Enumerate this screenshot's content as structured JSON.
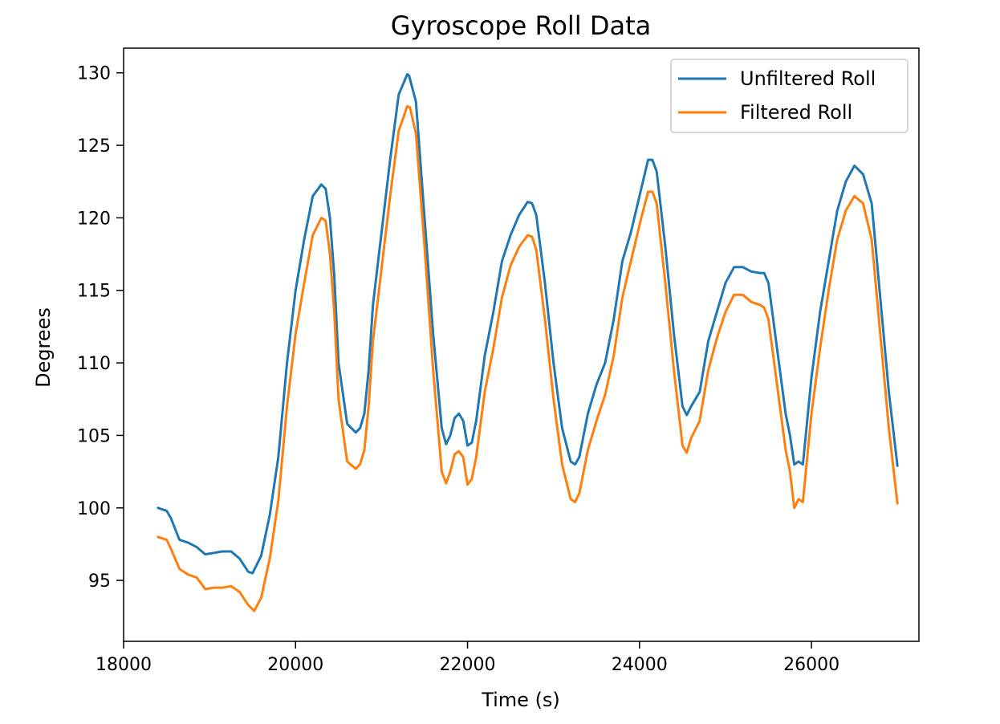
{
  "chart_data": {
    "type": "line",
    "title": "Gyroscope Roll Data",
    "xlabel": "Time (s)",
    "ylabel": "Degrees",
    "xlim": [
      18000,
      27250
    ],
    "ylim": [
      90.8,
      131.7
    ],
    "xticks": [
      18000,
      20000,
      22000,
      24000,
      26000
    ],
    "yticks": [
      95,
      100,
      105,
      110,
      115,
      120,
      125,
      130
    ],
    "grid": false,
    "legend_position": "top-right",
    "series": [
      {
        "name": "Unfiltered Roll",
        "color": "#1f77b4",
        "x": [
          18400,
          18500,
          18550,
          18650,
          18750,
          18850,
          18950,
          19050,
          19150,
          19250,
          19350,
          19450,
          19500,
          19600,
          19700,
          19800,
          19900,
          20000,
          20100,
          20200,
          20300,
          20350,
          20400,
          20450,
          20500,
          20600,
          20700,
          20750,
          20800,
          20850,
          20900,
          21000,
          21100,
          21200,
          21300,
          21320,
          21400,
          21500,
          21600,
          21700,
          21750,
          21800,
          21850,
          21900,
          21950,
          22000,
          22050,
          22100,
          22200,
          22300,
          22400,
          22500,
          22600,
          22700,
          22750,
          22800,
          22900,
          23000,
          23100,
          23200,
          23250,
          23300,
          23400,
          23500,
          23600,
          23700,
          23800,
          23900,
          24000,
          24100,
          24150,
          24200,
          24300,
          24400,
          24500,
          24550,
          24600,
          24700,
          24800,
          24900,
          25000,
          25100,
          25200,
          25300,
          25400,
          25450,
          25500,
          25600,
          25700,
          25750,
          25800,
          25850,
          25900,
          26000,
          26100,
          26200,
          26300,
          26400,
          26500,
          26600,
          26700,
          26800,
          26900,
          27000
        ],
        "y": [
          100.0,
          99.8,
          99.3,
          97.8,
          97.6,
          97.3,
          96.8,
          96.9,
          97.0,
          97.0,
          96.5,
          95.6,
          95.5,
          96.7,
          99.5,
          103.5,
          110.0,
          115.0,
          118.5,
          121.5,
          122.3,
          122.0,
          120.0,
          116.0,
          110.0,
          105.8,
          105.2,
          105.5,
          106.5,
          109.5,
          114.0,
          119.0,
          124.0,
          128.5,
          129.9,
          129.8,
          128.0,
          120.0,
          112.0,
          105.5,
          104.4,
          105.0,
          106.2,
          106.5,
          106.0,
          104.3,
          104.5,
          106.0,
          110.5,
          113.5,
          117.0,
          118.8,
          120.2,
          121.1,
          121.0,
          120.2,
          115.5,
          110.0,
          105.5,
          103.2,
          103.0,
          103.5,
          106.5,
          108.5,
          110.0,
          113.0,
          117.0,
          119.0,
          121.5,
          124.0,
          124.0,
          123.2,
          118.0,
          112.0,
          107.0,
          106.4,
          107.0,
          108.0,
          111.5,
          113.5,
          115.5,
          116.6,
          116.6,
          116.3,
          116.2,
          116.2,
          115.5,
          111.0,
          106.5,
          105.0,
          103.0,
          103.2,
          103.0,
          109.0,
          113.5,
          117.0,
          120.5,
          122.5,
          123.6,
          123.0,
          121.0,
          114.5,
          108.0,
          102.9
        ]
      },
      {
        "name": "Filtered Roll",
        "color": "#ff7f0e",
        "x": [
          18400,
          18500,
          18550,
          18650,
          18750,
          18850,
          18950,
          19050,
          19150,
          19250,
          19350,
          19450,
          19520,
          19600,
          19700,
          19800,
          19900,
          20000,
          20100,
          20200,
          20300,
          20350,
          20400,
          20450,
          20500,
          20600,
          20700,
          20750,
          20800,
          20850,
          20900,
          21000,
          21100,
          21200,
          21300,
          21330,
          21400,
          21500,
          21600,
          21700,
          21750,
          21800,
          21850,
          21900,
          21950,
          22000,
          22050,
          22100,
          22200,
          22300,
          22400,
          22500,
          22600,
          22700,
          22750,
          22800,
          22900,
          23000,
          23100,
          23200,
          23250,
          23300,
          23400,
          23500,
          23600,
          23700,
          23800,
          23900,
          24000,
          24100,
          24150,
          24200,
          24300,
          24400,
          24500,
          24550,
          24600,
          24700,
          24800,
          24900,
          25000,
          25100,
          25200,
          25300,
          25400,
          25450,
          25500,
          25600,
          25700,
          25750,
          25800,
          25850,
          25900,
          26000,
          26100,
          26200,
          26300,
          26400,
          26500,
          26600,
          26700,
          26800,
          26900,
          27000
        ],
        "y": [
          98.0,
          97.8,
          97.2,
          95.8,
          95.4,
          95.2,
          94.4,
          94.5,
          94.5,
          94.6,
          94.2,
          93.3,
          92.9,
          93.8,
          96.5,
          100.5,
          107.0,
          112.0,
          115.5,
          118.8,
          120.0,
          119.8,
          117.5,
          113.5,
          107.5,
          103.2,
          102.7,
          103.0,
          104.0,
          107.0,
          111.5,
          116.5,
          121.5,
          126.0,
          127.7,
          127.6,
          125.8,
          118.0,
          109.5,
          102.5,
          101.7,
          102.5,
          103.7,
          103.9,
          103.5,
          101.6,
          102.0,
          103.5,
          108.0,
          111.0,
          114.5,
          116.7,
          118.0,
          118.8,
          118.7,
          117.8,
          113.0,
          107.5,
          103.0,
          100.6,
          100.4,
          101.0,
          104.0,
          106.0,
          107.8,
          110.5,
          114.5,
          117.0,
          119.5,
          121.8,
          121.8,
          121.0,
          115.5,
          109.5,
          104.3,
          103.8,
          104.8,
          106.0,
          109.5,
          111.7,
          113.5,
          114.7,
          114.7,
          114.2,
          114.0,
          113.8,
          113.0,
          108.5,
          104.0,
          102.5,
          100.0,
          100.6,
          100.4,
          106.5,
          111.0,
          115.0,
          118.5,
          120.5,
          121.5,
          121.0,
          118.5,
          112.0,
          105.5,
          100.3
        ]
      }
    ]
  }
}
